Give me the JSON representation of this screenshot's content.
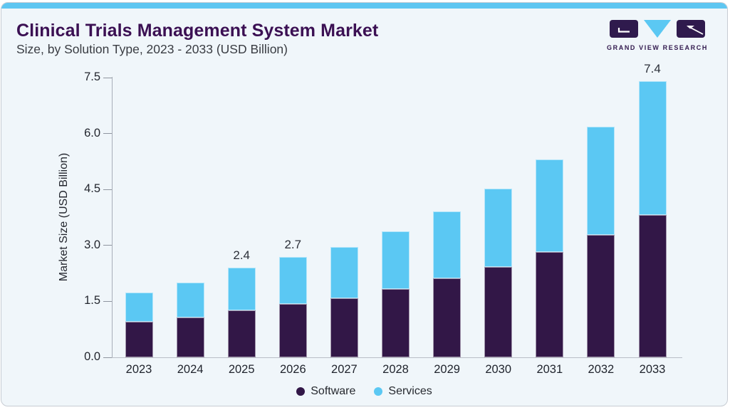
{
  "header": {
    "title": "Clinical Trials Management System Market",
    "subtitle": "Size, by Solution Type, 2023 - 2033 (USD Billion)"
  },
  "logo": {
    "text": "GRAND VIEW RESEARCH"
  },
  "colors": {
    "accent_blue": "#5ec6f1",
    "software_purple": "#321747",
    "services_blue": "#5bc8f3",
    "title_purple": "#3b1053",
    "card_background": "#f0f6fa",
    "axis_gray": "#a9afb9"
  },
  "chart_data": {
    "type": "bar",
    "stacked": true,
    "title": "Clinical Trials Management System Market Size, by Solution Type, 2023 - 2033 (USD Billion)",
    "categories": [
      "2023",
      "2024",
      "2025",
      "2026",
      "2027",
      "2028",
      "2029",
      "2030",
      "2031",
      "2032",
      "2033"
    ],
    "series": [
      {
        "name": "Software",
        "color": "#321747",
        "values": [
          0.95,
          1.06,
          1.26,
          1.44,
          1.59,
          1.83,
          2.11,
          2.43,
          2.83,
          3.28,
          3.82
        ]
      },
      {
        "name": "Services",
        "color": "#5bc8f3",
        "values": [
          0.79,
          0.94,
          1.14,
          1.26,
          1.36,
          1.55,
          1.8,
          2.09,
          2.47,
          2.9,
          3.58
        ]
      }
    ],
    "totals": [
      1.74,
      2.0,
      2.4,
      2.7,
      2.95,
      3.38,
      3.91,
      4.52,
      5.3,
      6.18,
      7.4
    ],
    "bar_labels": {
      "2025": "2.4",
      "2026": "2.7",
      "2033": "7.4"
    },
    "xlabel": "",
    "ylabel": "Market Size (USD Billion)",
    "ylim": [
      0,
      7.5
    ],
    "yticks": [
      0.0,
      1.5,
      3.0,
      4.5,
      6.0,
      7.5
    ],
    "ytick_labels": [
      "0.0",
      "1.5",
      "3.0",
      "4.5",
      "6.0",
      "7.5"
    ],
    "grid": false,
    "legend_position": "bottom"
  }
}
